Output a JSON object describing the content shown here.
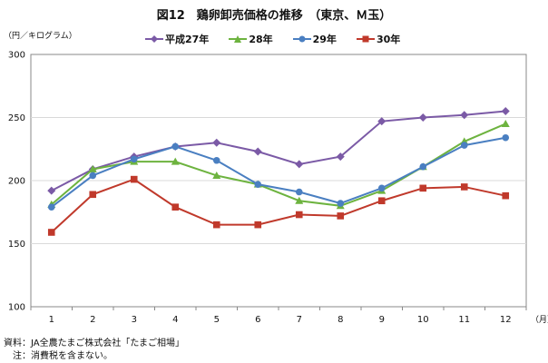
{
  "title": "図12　鶏卵卸売価格の推移　（東京、Ｍ玉）",
  "y_unit_label": "（円／キログラム）",
  "x_unit_label": "（月）",
  "source_note": "資料：JA全農たまご株式会社「たまご相場」",
  "tax_note": "注：消費税を含まない。",
  "colors": {
    "H27": "#7b5aa6",
    "H28": "#6db33f",
    "H29": "#4a7fc1",
    "H30": "#c0392b",
    "grid": "#d9d9d9",
    "axis": "#888888"
  },
  "chart_data": {
    "type": "line",
    "title": "図12　鶏卵卸売価格の推移　（東京、Ｍ玉）",
    "xlabel": "（月）",
    "ylabel": "（円／キログラム）",
    "categories": [
      "1",
      "2",
      "3",
      "4",
      "5",
      "6",
      "7",
      "8",
      "9",
      "10",
      "11",
      "12"
    ],
    "ylim": [
      100,
      300
    ],
    "yticks": [
      100,
      150,
      200,
      250,
      300
    ],
    "grid": true,
    "legend_position": "top",
    "series": [
      {
        "name": "平成27年",
        "marker": "diamond",
        "color": "#7b5aa6",
        "values": [
          192,
          209,
          219,
          227,
          230,
          223,
          213,
          219,
          247,
          250,
          252,
          255
        ]
      },
      {
        "name": "28年",
        "marker": "triangle",
        "color": "#6db33f",
        "values": [
          181,
          209,
          215,
          215,
          204,
          197,
          184,
          180,
          192,
          211,
          231,
          245
        ]
      },
      {
        "name": "29年",
        "marker": "circle",
        "color": "#4a7fc1",
        "values": [
          179,
          204,
          217,
          227,
          216,
          197,
          191,
          182,
          194,
          211,
          228,
          234
        ]
      },
      {
        "name": "30年",
        "marker": "square",
        "color": "#c0392b",
        "values": [
          159,
          189,
          201,
          179,
          165,
          165,
          173,
          172,
          184,
          194,
          195,
          188
        ]
      }
    ]
  }
}
